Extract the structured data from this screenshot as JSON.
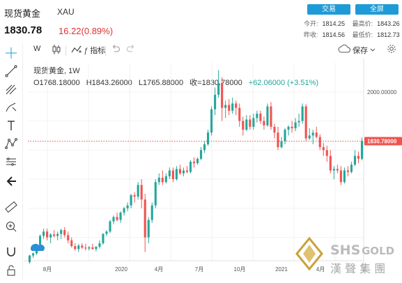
{
  "header": {
    "title": "现货黄金",
    "symbol": "XAU",
    "price": "1830.78",
    "change": "16.22(0.89%)",
    "trade_button": "交易",
    "fullscreen_button": "全屏",
    "stats": {
      "open_label": "今开:",
      "open": "1814.25",
      "high_label": "最高价:",
      "high": "1843.26",
      "prev_label": "昨收:",
      "prev": "1814.56",
      "low_label": "最低价:",
      "low": "1812.73"
    }
  },
  "toolbar": {
    "interval": "W",
    "indicators_label": "指标",
    "save_label": "保存"
  },
  "legend": {
    "name": "现货黄金, 1W",
    "open": "O1768.18000",
    "high": "H1843.26000",
    "low": "L1765.88000",
    "close": "收=1830.78000",
    "change": "+62.06000 (+3.51%)"
  },
  "logo_text": "漢 聲 集 團",
  "chart_data": {
    "type": "candlestick",
    "interval": "1W",
    "ylim": [
      1420,
      2100
    ],
    "grid": true,
    "y_ticks": [
      "2000.00000"
    ],
    "last_price_label": "1830.78000",
    "last_price": 1830.78,
    "x_tick_labels": [
      "8月",
      "2020",
      "4月",
      "7月",
      "10月",
      "2021",
      "4月",
      "7"
    ],
    "colors": {
      "up": "#26a69a",
      "down": "#ef5350"
    },
    "candles": [
      [
        1415,
        1440,
        1410,
        1438
      ],
      [
        1438,
        1448,
        1430,
        1445
      ],
      [
        1445,
        1470,
        1440,
        1465
      ],
      [
        1465,
        1510,
        1460,
        1505
      ],
      [
        1505,
        1530,
        1495,
        1520
      ],
      [
        1520,
        1530,
        1490,
        1500
      ],
      [
        1500,
        1515,
        1480,
        1510
      ],
      [
        1510,
        1525,
        1500,
        1505
      ],
      [
        1505,
        1520,
        1490,
        1512
      ],
      [
        1512,
        1530,
        1495,
        1525
      ],
      [
        1525,
        1535,
        1500,
        1508
      ],
      [
        1508,
        1520,
        1480,
        1490
      ],
      [
        1490,
        1500,
        1465,
        1470
      ],
      [
        1470,
        1480,
        1455,
        1460
      ],
      [
        1460,
        1478,
        1450,
        1472
      ],
      [
        1472,
        1480,
        1460,
        1465
      ],
      [
        1465,
        1478,
        1455,
        1462
      ],
      [
        1462,
        1470,
        1455,
        1466
      ],
      [
        1466,
        1478,
        1458,
        1460
      ],
      [
        1460,
        1470,
        1452,
        1468
      ],
      [
        1468,
        1490,
        1462,
        1480
      ],
      [
        1480,
        1515,
        1475,
        1512
      ],
      [
        1512,
        1525,
        1505,
        1520
      ],
      [
        1520,
        1560,
        1515,
        1555
      ],
      [
        1555,
        1575,
        1545,
        1570
      ],
      [
        1570,
        1585,
        1555,
        1560
      ],
      [
        1560,
        1590,
        1550,
        1585
      ],
      [
        1585,
        1605,
        1575,
        1600
      ],
      [
        1600,
        1620,
        1590,
        1610
      ],
      [
        1610,
        1650,
        1600,
        1645
      ],
      [
        1645,
        1655,
        1620,
        1640
      ],
      [
        1640,
        1690,
        1630,
        1680
      ],
      [
        1680,
        1700,
        1600,
        1630
      ],
      [
        1630,
        1650,
        1450,
        1500
      ],
      [
        1500,
        1570,
        1480,
        1560
      ],
      [
        1560,
        1620,
        1550,
        1610
      ],
      [
        1610,
        1700,
        1600,
        1690
      ],
      [
        1690,
        1720,
        1680,
        1705
      ],
      [
        1705,
        1730,
        1680,
        1690
      ],
      [
        1690,
        1720,
        1685,
        1710
      ],
      [
        1710,
        1740,
        1700,
        1730
      ],
      [
        1730,
        1740,
        1690,
        1700
      ],
      [
        1700,
        1745,
        1695,
        1735
      ],
      [
        1735,
        1750,
        1715,
        1720
      ],
      [
        1720,
        1740,
        1710,
        1730
      ],
      [
        1730,
        1745,
        1720,
        1725
      ],
      [
        1725,
        1765,
        1720,
        1760
      ],
      [
        1760,
        1775,
        1740,
        1755
      ],
      [
        1755,
        1775,
        1750,
        1770
      ],
      [
        1770,
        1810,
        1765,
        1800
      ],
      [
        1800,
        1830,
        1790,
        1820
      ],
      [
        1820,
        1870,
        1815,
        1860
      ],
      [
        1860,
        1950,
        1850,
        1940
      ],
      [
        1940,
        2015,
        1920,
        1990
      ],
      [
        1990,
        2075,
        1980,
        2030
      ],
      [
        2030,
        2050,
        1900,
        1945
      ],
      [
        1945,
        1970,
        1910,
        1955
      ],
      [
        1955,
        1975,
        1920,
        1935
      ],
      [
        1935,
        1980,
        1925,
        1960
      ],
      [
        1960,
        1970,
        1920,
        1945
      ],
      [
        1945,
        1960,
        1880,
        1900
      ],
      [
        1900,
        1915,
        1850,
        1870
      ],
      [
        1870,
        1920,
        1865,
        1905
      ],
      [
        1905,
        1920,
        1870,
        1880
      ],
      [
        1880,
        1925,
        1870,
        1910
      ],
      [
        1910,
        1935,
        1895,
        1925
      ],
      [
        1925,
        1935,
        1890,
        1900
      ],
      [
        1900,
        1915,
        1870,
        1885
      ],
      [
        1885,
        1960,
        1880,
        1950
      ],
      [
        1950,
        1965,
        1870,
        1880
      ],
      [
        1880,
        1890,
        1840,
        1860
      ],
      [
        1860,
        1880,
        1800,
        1810
      ],
      [
        1810,
        1845,
        1805,
        1830
      ],
      [
        1830,
        1875,
        1820,
        1870
      ],
      [
        1870,
        1885,
        1850,
        1880
      ],
      [
        1880,
        1900,
        1860,
        1875
      ],
      [
        1875,
        1910,
        1865,
        1895
      ],
      [
        1895,
        1925,
        1880,
        1900
      ],
      [
        1900,
        1960,
        1890,
        1950
      ],
      [
        1950,
        1958,
        1830,
        1840
      ],
      [
        1840,
        1875,
        1835,
        1850
      ],
      [
        1850,
        1870,
        1820,
        1860
      ],
      [
        1860,
        1880,
        1840,
        1845
      ],
      [
        1845,
        1855,
        1800,
        1810
      ],
      [
        1810,
        1825,
        1780,
        1800
      ],
      [
        1800,
        1815,
        1760,
        1780
      ],
      [
        1780,
        1800,
        1720,
        1730
      ],
      [
        1730,
        1745,
        1700,
        1735
      ],
      [
        1735,
        1750,
        1720,
        1730
      ],
      [
        1730,
        1745,
        1680,
        1690
      ],
      [
        1690,
        1740,
        1685,
        1730
      ],
      [
        1730,
        1745,
        1710,
        1725
      ],
      [
        1725,
        1760,
        1720,
        1750
      ],
      [
        1750,
        1800,
        1745,
        1780
      ],
      [
        1780,
        1795,
        1755,
        1770
      ],
      [
        1770,
        1843,
        1765,
        1831
      ]
    ]
  }
}
